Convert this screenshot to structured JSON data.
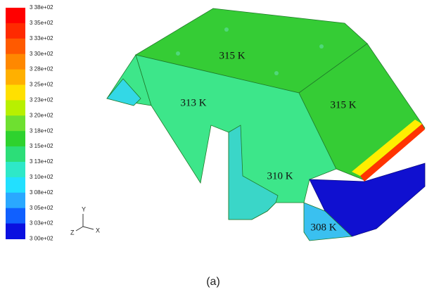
{
  "colorbar": {
    "labels": [
      "3 38e+02",
      "3 35e+02",
      "3 33e+02",
      "3 30e+02",
      "3 28e+02",
      "3 25e+02",
      "3 23e+02",
      "3 20e+02",
      "3 18e+02",
      "3 15e+02",
      "3 13e+02",
      "3 10e+02",
      "3 08e+02",
      "3 05e+02",
      "3 03e+02",
      "3 00e+02"
    ]
  },
  "annotations": [
    "315 K",
    "313 K",
    "315 K",
    "310 K",
    "308 K"
  ],
  "axes": {
    "y": "Y",
    "z": "Z",
    "x": "X"
  },
  "caption": "(a)"
}
